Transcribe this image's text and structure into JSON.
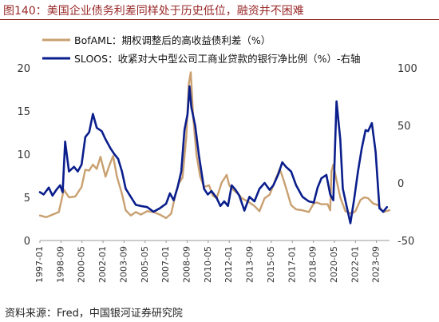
{
  "title": "图140：美国企业债务利差同样处于历史低位，融资并不困难",
  "source": "资料来源：Fred，中国银河证券研究院",
  "colors": {
    "bofaml": "#C9A070",
    "sloos": "#0A1E8C",
    "title": "#9A2A2A"
  },
  "chart_data": {
    "type": "line",
    "title": "",
    "legend": [
      "BofAML：期权调整后的高收益债利差（%）",
      "SLOOS：收紧对大中型公司工商业贷款的银行净比例（%）-右轴"
    ],
    "legend_position": "top",
    "x_ticks": [
      "1997-01",
      "1998-09",
      "2000-05",
      "2002-01",
      "2003-09",
      "2005-05",
      "2007-01",
      "2008-09",
      "2010-05",
      "2012-01",
      "2013-09",
      "2015-05",
      "2017-01",
      "2018-09",
      "2020-05",
      "2022-01",
      "2023-09"
    ],
    "x_range": [
      1997.0,
      2024.7
    ],
    "y_left": {
      "range": [
        0,
        20
      ],
      "ticks": [
        "0",
        "5",
        "10",
        "15",
        "20"
      ]
    },
    "y_right": {
      "range": [
        -50,
        100
      ],
      "ticks": [
        "-50",
        "0",
        "50",
        "100"
      ]
    },
    "grid": false,
    "series": [
      {
        "name": "BofAML：期权调整后的高收益债利差（%）",
        "axis": "left",
        "color": "#C9A070",
        "x": [
          1997.0,
          1997.5,
          1998.0,
          1998.5,
          1998.9,
          1999.3,
          1999.8,
          2000.3,
          2000.6,
          2000.9,
          2001.2,
          2001.5,
          2001.8,
          2002.2,
          2002.5,
          2002.8,
          2003.1,
          2003.5,
          2003.8,
          2004.2,
          2004.6,
          2005.0,
          2005.5,
          2006.0,
          2006.5,
          2007.0,
          2007.4,
          2007.8,
          2008.0,
          2008.3,
          2008.6,
          2008.8,
          2008.95,
          2009.15,
          2009.4,
          2009.7,
          2010.0,
          2010.4,
          2010.7,
          2011.0,
          2011.4,
          2011.8,
          2012.0,
          2012.3,
          2012.7,
          2013.0,
          2013.5,
          2014.0,
          2014.4,
          2014.8,
          2015.2,
          2015.6,
          2016.0,
          2016.2,
          2016.5,
          2016.9,
          2017.3,
          2017.8,
          2018.3,
          2018.7,
          2018.95,
          2019.3,
          2019.8,
          2020.0,
          2020.1,
          2020.25,
          2020.5,
          2020.8,
          2021.2,
          2021.7,
          2022.0,
          2022.4,
          2022.7,
          2023.0,
          2023.4,
          2023.8,
          2024.2,
          2024.7
        ],
        "y": [
          2.9,
          2.7,
          3.0,
          3.3,
          5.9,
          5.0,
          5.1,
          6.2,
          8.2,
          8.1,
          8.8,
          8.3,
          9.7,
          7.4,
          8.7,
          9.8,
          7.4,
          5.4,
          3.5,
          2.9,
          3.3,
          3.0,
          3.4,
          3.3,
          3.0,
          2.6,
          3.1,
          5.7,
          6.6,
          7.3,
          12.0,
          18.2,
          19.5,
          14.2,
          10.0,
          7.4,
          6.2,
          6.4,
          5.2,
          4.9,
          6.7,
          7.6,
          6.4,
          5.9,
          5.4,
          4.9,
          4.5,
          4.0,
          3.4,
          4.9,
          5.3,
          6.8,
          8.3,
          7.5,
          6.1,
          4.1,
          3.6,
          3.5,
          3.3,
          4.3,
          4.4,
          4.2,
          4.2,
          3.5,
          8.0,
          8.8,
          7.0,
          5.0,
          3.4,
          3.1,
          3.4,
          4.7,
          5.0,
          4.9,
          4.3,
          4.1,
          3.3,
          3.5
        ]
      },
      {
        "name": "SLOOS：收紧对大中型公司工商业贷款的银行净比例（%）-右轴",
        "axis": "right",
        "color": "#0A1E8C",
        "x": [
          1997.0,
          1997.3,
          1997.7,
          1998.0,
          1998.3,
          1998.6,
          1998.8,
          1999.0,
          1999.3,
          1999.7,
          2000.0,
          2000.3,
          2000.6,
          2000.9,
          2001.2,
          2001.5,
          2001.9,
          2002.2,
          2002.6,
          2002.9,
          2003.2,
          2003.5,
          2003.8,
          2004.2,
          2004.6,
          2005.0,
          2005.5,
          2006.0,
          2006.5,
          2007.0,
          2007.3,
          2007.6,
          2007.9,
          2008.2,
          2008.45,
          2008.7,
          2008.85,
          2009.0,
          2009.3,
          2009.6,
          2010.0,
          2010.3,
          2010.6,
          2011.0,
          2011.3,
          2011.6,
          2011.9,
          2012.2,
          2012.5,
          2012.8,
          2013.2,
          2013.6,
          2014.0,
          2014.4,
          2014.8,
          2015.2,
          2015.5,
          2015.9,
          2016.2,
          2016.5,
          2016.9,
          2017.3,
          2017.8,
          2018.3,
          2018.7,
          2019.0,
          2019.3,
          2019.7,
          2020.0,
          2020.25,
          2020.5,
          2020.8,
          2021.0,
          2021.3,
          2021.6,
          2021.9,
          2022.2,
          2022.5,
          2022.8,
          2023.0,
          2023.3,
          2023.6,
          2023.9,
          2024.2,
          2024.5
        ],
        "y": [
          -8,
          -10,
          -4,
          -11,
          -6,
          -2,
          -8,
          36,
          10,
          14,
          10,
          16,
          40,
          44,
          60,
          48,
          45,
          38,
          30,
          25,
          21,
          10,
          -5,
          -12,
          -19,
          -20,
          -21,
          -25,
          -22,
          -18,
          -9,
          -15,
          -4,
          10,
          46,
          60,
          84,
          66,
          50,
          24,
          -5,
          -10,
          -7,
          -13,
          -20,
          -16,
          -20,
          -2,
          -6,
          -11,
          -24,
          -12,
          -16,
          -5,
          0,
          -6,
          -2,
          8,
          18,
          14,
          10,
          -2,
          -12,
          -16,
          -17,
          -4,
          4,
          7,
          -10,
          -15,
          71,
          38,
          -5,
          -20,
          -35,
          -14,
          10,
          30,
          46,
          45,
          52,
          27,
          -22,
          -25,
          -21
        ]
      }
    ]
  }
}
